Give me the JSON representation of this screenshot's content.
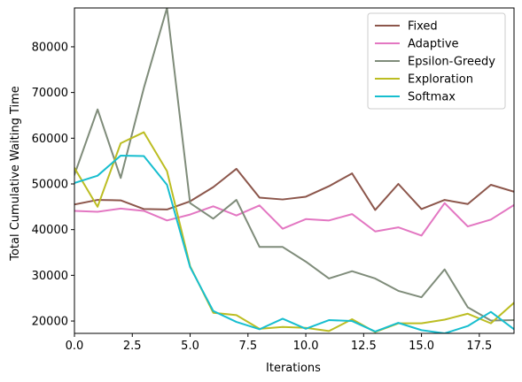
{
  "chart_data": {
    "type": "line",
    "xlabel": "Iterations",
    "ylabel": "Total Cumulative Waiting Time",
    "xlim": [
      0,
      19
    ],
    "ylim": [
      17300,
      88500
    ],
    "xticks": [
      0.0,
      2.5,
      5.0,
      7.5,
      10.0,
      12.5,
      15.0,
      17.5
    ],
    "xtick_labels": [
      "0.0",
      "2.5",
      "5.0",
      "7.5",
      "10.0",
      "12.5",
      "15.0",
      "17.5"
    ],
    "yticks": [
      20000,
      30000,
      40000,
      50000,
      60000,
      70000,
      80000
    ],
    "ytick_labels": [
      "20000",
      "30000",
      "40000",
      "50000",
      "60000",
      "70000",
      "80000"
    ],
    "grid": false,
    "legend_position": "top-right",
    "x": [
      0,
      1,
      2,
      3,
      4,
      5,
      6,
      7,
      8,
      9,
      10,
      11,
      12,
      13,
      14,
      15,
      16,
      17,
      18,
      19
    ],
    "series": [
      {
        "name": "Fixed",
        "color": "#8c564b",
        "values": [
          45500,
          46500,
          46400,
          44500,
          44400,
          46200,
          49300,
          53300,
          47000,
          46600,
          47200,
          49500,
          52300,
          44300,
          50000,
          44500,
          46500,
          45600,
          49800,
          48300
        ]
      },
      {
        "name": "Adaptive",
        "color": "#e377c2",
        "values": [
          44100,
          43900,
          44600,
          44100,
          42000,
          43300,
          45100,
          43100,
          45300,
          40200,
          42300,
          42000,
          43400,
          39600,
          40500,
          38700,
          45800,
          40700,
          42200,
          45400
        ]
      },
      {
        "name": "Epsilon-Greedy",
        "color": "#7f8c7a",
        "values": [
          52000,
          66300,
          51300,
          71000,
          88500,
          45800,
          42400,
          46500,
          36200,
          36200,
          33000,
          29300,
          30900,
          29300,
          26600,
          25200,
          31300,
          23000,
          20100,
          20200
        ]
      },
      {
        "name": "Exploration",
        "color": "#bcbd22",
        "values": [
          53500,
          45000,
          58900,
          61300,
          52800,
          32000,
          21800,
          21300,
          18300,
          18700,
          18500,
          17800,
          20400,
          17600,
          19500,
          19500,
          20300,
          21600,
          19500,
          24000
        ]
      },
      {
        "name": "Softmax",
        "color": "#17becf",
        "values": [
          50200,
          51800,
          56200,
          56100,
          49800,
          31800,
          22200,
          19800,
          18200,
          20500,
          18300,
          20200,
          20000,
          17700,
          19600,
          18000,
          17300,
          18900,
          22000,
          18200
        ]
      }
    ]
  }
}
